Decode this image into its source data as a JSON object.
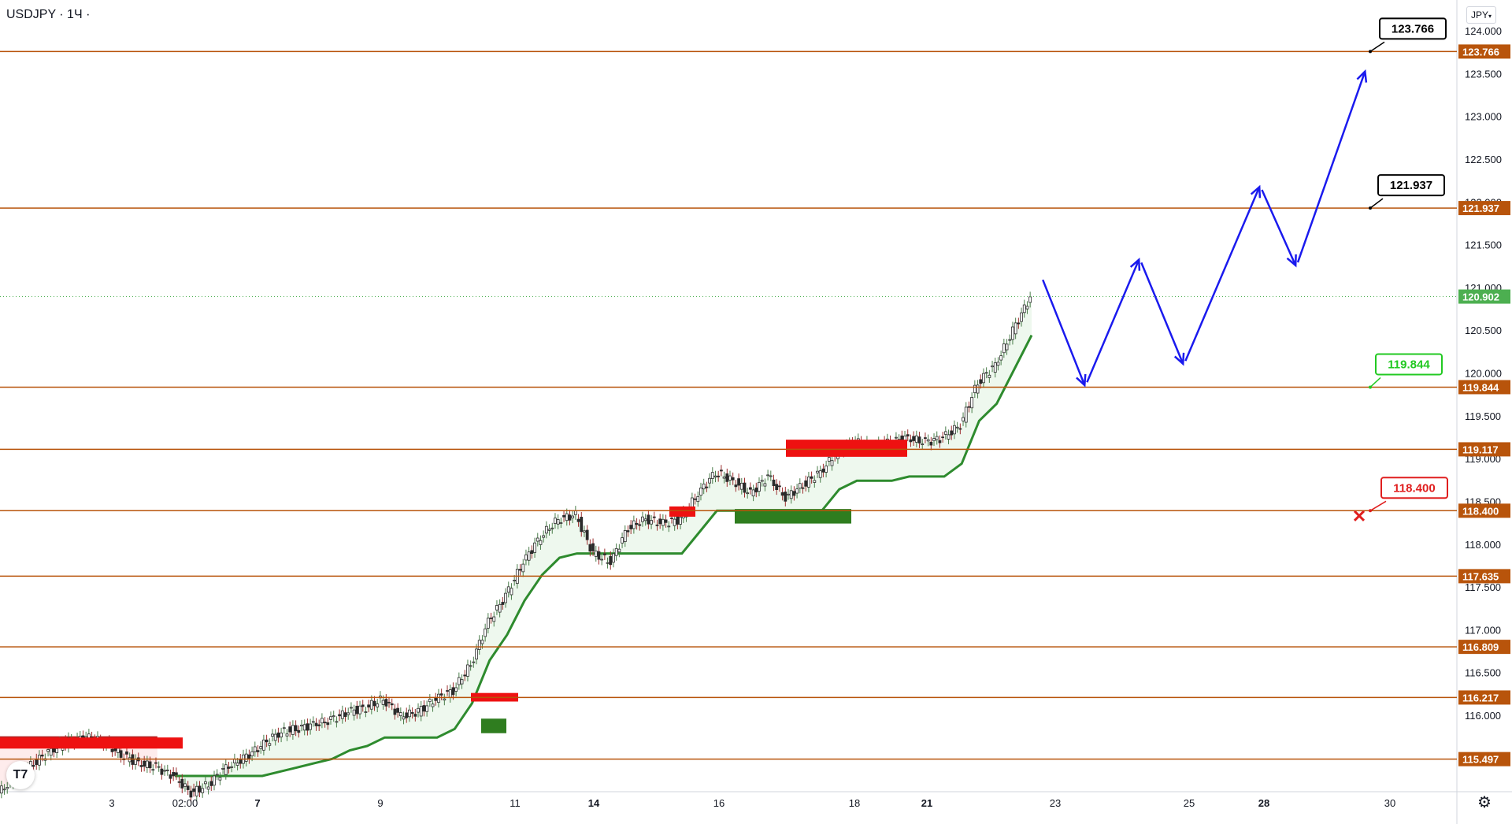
{
  "header": {
    "symbol_title": "USDJPY · 1Ч ·",
    "currency": "JPY"
  },
  "logo": {
    "text": "T7"
  },
  "icons": {
    "settings": "gear-icon",
    "logo": "tradingview-logo-icon",
    "chevron": "chevron-down-icon"
  },
  "chart_data": {
    "type": "candlestick",
    "symbol": "USDJPY",
    "interval": "1Ч",
    "y_axis": {
      "range": [
        115.1,
        124.2
      ],
      "ticks": [
        "124.000",
        "123.500",
        "123.000",
        "122.500",
        "122.000",
        "121.500",
        "121.000",
        "120.500",
        "120.000",
        "119.500",
        "119.000",
        "118.500",
        "118.000",
        "117.500",
        "117.000",
        "116.500",
        "116.000"
      ]
    },
    "x_axis": {
      "ticks": [
        {
          "label": "3",
          "bold": false
        },
        {
          "label": "02:00",
          "bold": false
        },
        {
          "label": "7",
          "bold": true
        },
        {
          "label": "9",
          "bold": false
        },
        {
          "label": "11",
          "bold": false
        },
        {
          "label": "14",
          "bold": true
        },
        {
          "label": "16",
          "bold": false
        },
        {
          "label": "18",
          "bold": false
        },
        {
          "label": "21",
          "bold": true
        },
        {
          "label": "23",
          "bold": false
        },
        {
          "label": "25",
          "bold": false
        },
        {
          "label": "28",
          "bold": true
        },
        {
          "label": "30",
          "bold": false
        }
      ]
    },
    "last_price": "120.902",
    "levels": [
      "123.766",
      "121.937",
      "119.844",
      "119.117",
      "118.400",
      "117.635",
      "116.809",
      "116.217",
      "115.497"
    ],
    "callouts": [
      {
        "label": "123.766",
        "color": "#000000"
      },
      {
        "label": "121.937",
        "color": "#000000"
      },
      {
        "label": "119.844",
        "color": "#22c922"
      },
      {
        "label": "118.400",
        "color": "#e01e1e"
      }
    ],
    "price_path": [
      115.1,
      115.3,
      115.45,
      115.6,
      115.7,
      115.75,
      115.7,
      115.55,
      115.45,
      115.4,
      115.3,
      115.1,
      115.2,
      115.4,
      115.5,
      115.65,
      115.8,
      115.85,
      115.9,
      115.95,
      116.05,
      116.1,
      116.2,
      116.0,
      116.05,
      116.2,
      116.3,
      116.6,
      117.1,
      117.4,
      117.8,
      118.1,
      118.3,
      118.35,
      117.9,
      117.8,
      118.2,
      118.3,
      118.25,
      118.3,
      118.6,
      118.85,
      118.75,
      118.6,
      118.8,
      118.55,
      118.7,
      118.85,
      119.1,
      119.2,
      119.15,
      119.2,
      119.25,
      119.2,
      119.25,
      119.4,
      119.9,
      120.1,
      120.5,
      120.9
    ],
    "forecast": [
      121.15,
      119.85,
      121.35,
      120.1,
      122.2,
      121.25,
      123.55
    ],
    "color_palette": {
      "level_line": "#b8540b",
      "bull_trail": "#2e8b2e",
      "bear_trail": "#b22222",
      "forecast": "#1a1aee",
      "supply_zone": "#ee1111",
      "demand_zone": "#2f7d1f",
      "last_price_badge": "#4caf50"
    }
  }
}
